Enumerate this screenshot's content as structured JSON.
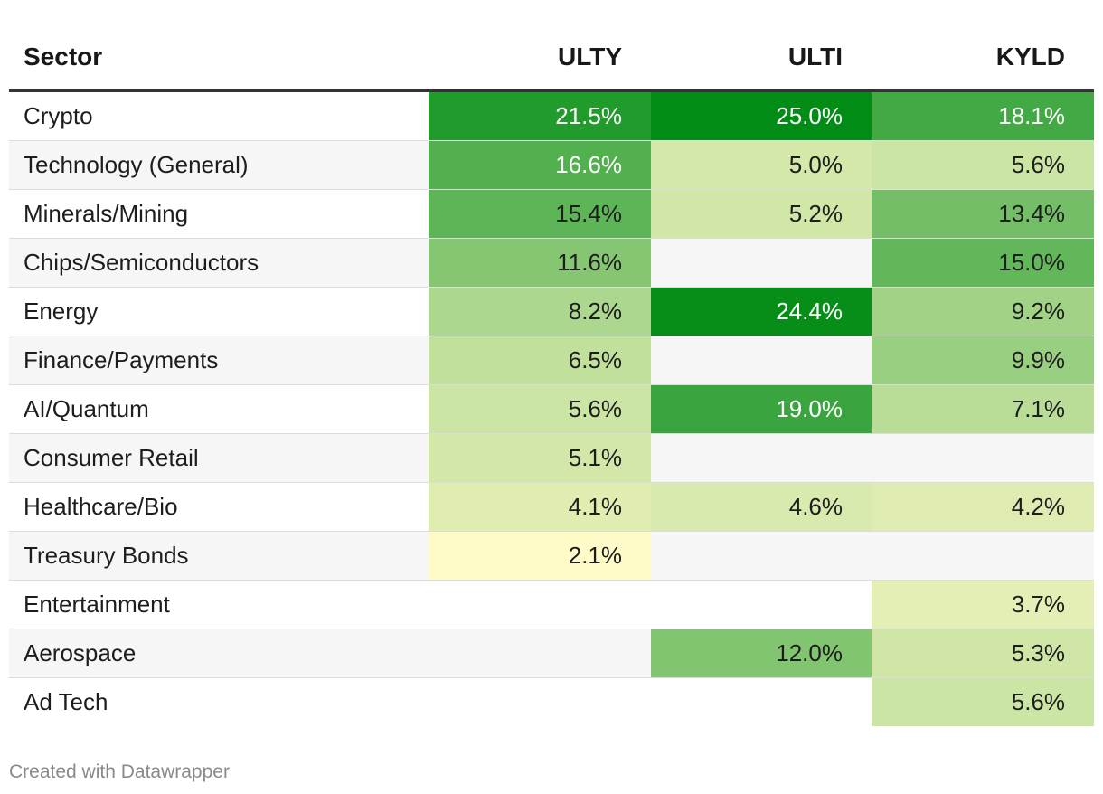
{
  "chart_data": {
    "type": "table",
    "columns": [
      "Sector",
      "ULTY",
      "ULTI",
      "KYLD"
    ],
    "rows": [
      {
        "sector": "Crypto",
        "values": [
          21.5,
          25.0,
          18.1
        ],
        "labels": [
          "21.5%",
          "25.0%",
          "18.1%"
        ]
      },
      {
        "sector": "Technology (General)",
        "values": [
          16.6,
          5.0,
          5.6
        ],
        "labels": [
          "16.6%",
          "5.0%",
          "5.6%"
        ]
      },
      {
        "sector": "Minerals/Mining",
        "values": [
          15.4,
          5.2,
          13.4
        ],
        "labels": [
          "15.4%",
          "5.2%",
          "13.4%"
        ]
      },
      {
        "sector": "Chips/Semiconductors",
        "values": [
          11.6,
          null,
          15.0
        ],
        "labels": [
          "11.6%",
          "",
          "15.0%"
        ]
      },
      {
        "sector": "Energy",
        "values": [
          8.2,
          24.4,
          9.2
        ],
        "labels": [
          "8.2%",
          "24.4%",
          "9.2%"
        ]
      },
      {
        "sector": "Finance/Payments",
        "values": [
          6.5,
          null,
          9.9
        ],
        "labels": [
          "6.5%",
          "",
          "9.9%"
        ]
      },
      {
        "sector": "AI/Quantum",
        "values": [
          5.6,
          19.0,
          7.1
        ],
        "labels": [
          "5.6%",
          "19.0%",
          "7.1%"
        ]
      },
      {
        "sector": "Consumer Retail",
        "values": [
          5.1,
          null,
          null
        ],
        "labels": [
          "5.1%",
          "",
          ""
        ]
      },
      {
        "sector": "Healthcare/Bio",
        "values": [
          4.1,
          4.6,
          4.2
        ],
        "labels": [
          "4.1%",
          "4.6%",
          "4.2%"
        ]
      },
      {
        "sector": "Treasury Bonds",
        "values": [
          2.1,
          null,
          null
        ],
        "labels": [
          "2.1%",
          "",
          ""
        ]
      },
      {
        "sector": "Entertainment",
        "values": [
          null,
          null,
          3.7
        ],
        "labels": [
          "",
          "",
          "3.7%"
        ]
      },
      {
        "sector": "Aerospace",
        "values": [
          null,
          12.0,
          5.3
        ],
        "labels": [
          "",
          "12.0%",
          "5.3%"
        ]
      },
      {
        "sector": "Ad Tech",
        "values": [
          null,
          null,
          5.6
        ],
        "labels": [
          "",
          "",
          "5.6%"
        ]
      }
    ],
    "color_scale": {
      "low": "#fffbc8",
      "high": "#008c15",
      "min": 2.1,
      "max": 25.0
    }
  },
  "credit": "Created with Datawrapper"
}
